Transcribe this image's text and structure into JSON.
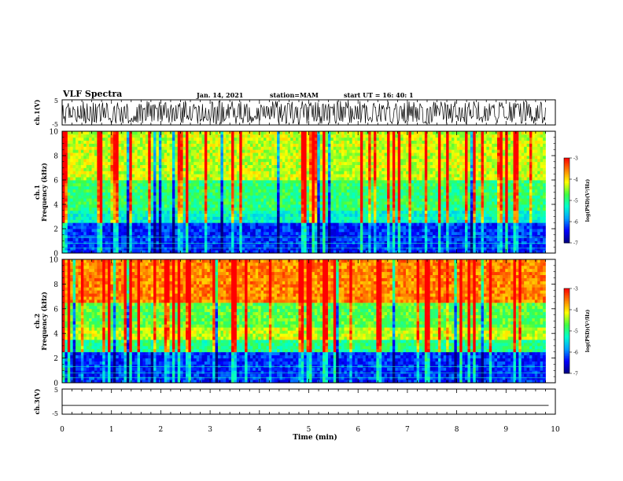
{
  "header": {
    "title": "VLF Spectra",
    "date": "Jan. 14, 2021",
    "station": "station=MAM",
    "start": "start UT =  16: 40: 1"
  },
  "colors": {
    "ramp": [
      "#000080",
      "#0000ff",
      "#00a0ff",
      "#00ffd0",
      "#40ff40",
      "#ffff00",
      "#ff8000",
      "#ff0000",
      "#ffffff"
    ]
  },
  "chart_data": [
    {
      "type": "line",
      "panel": "ch1-waveform",
      "ylabel": "ch.1(V)",
      "ylim": [
        -5,
        5
      ],
      "y_ticklabels": [
        "5",
        "-5"
      ],
      "description_values": "bursty waveform saturating near full scale"
    },
    {
      "type": "heatmap",
      "panel": "ch1-spectrogram",
      "ylabel": "ch.1\nFrequency (kHz)",
      "ylabel_lines": [
        "ch.1",
        "Frequency (kHz)"
      ],
      "ylim": [
        0,
        10
      ],
      "y_ticks": [
        0,
        2,
        4,
        6,
        8,
        10
      ],
      "colorbar": {
        "label": "log(PSD)(V²/Hz)",
        "range": [
          -7,
          -3
        ],
        "ticks": [
          "-3",
          "-4",
          "-5",
          "-6",
          "-7"
        ]
      },
      "bands_khz": [
        {
          "from": 0,
          "to": 2.5,
          "level": -6.3
        },
        {
          "from": 2.5,
          "to": 3.5,
          "level": -5.3
        },
        {
          "from": 3.5,
          "to": 6,
          "level": -4.9
        },
        {
          "from": 6,
          "to": 10,
          "level": -4.3
        }
      ]
    },
    {
      "type": "heatmap",
      "panel": "ch2-spectrogram",
      "ylabel": "ch.2\nFrequency (kHz)",
      "ylabel_lines": [
        "ch.2",
        "Frequency (kHz)"
      ],
      "ylim": [
        0,
        10
      ],
      "y_ticks": [
        0,
        2,
        4,
        6,
        8,
        10
      ],
      "colorbar": {
        "label": "log(PSD)(V²/Hz)",
        "range": [
          -7,
          -3
        ],
        "ticks": [
          "-3",
          "-4",
          "-5",
          "-6",
          "-7"
        ]
      },
      "bands_khz": [
        {
          "from": 0,
          "to": 2.5,
          "level": -6.3
        },
        {
          "from": 2.5,
          "to": 3.5,
          "level": -5.0
        },
        {
          "from": 3.5,
          "to": 4.5,
          "level": -4.3
        },
        {
          "from": 4.5,
          "to": 6.5,
          "level": -4.7
        },
        {
          "from": 6.5,
          "to": 10,
          "level": -3.6
        }
      ]
    },
    {
      "type": "line",
      "panel": "ch3-waveform",
      "ylabel": "ch.3(V)",
      "ylim": [
        -5,
        5
      ],
      "y_ticklabels": [
        "5",
        "-5"
      ],
      "values": [
        -1.5,
        -1.5
      ]
    }
  ],
  "x_axis": {
    "label": "Time (min)",
    "range": [
      0,
      10
    ],
    "ticks": [
      "0",
      "1",
      "2",
      "3",
      "4",
      "5",
      "6",
      "7",
      "8",
      "9",
      "10"
    ],
    "data_end_min": 9.8
  }
}
